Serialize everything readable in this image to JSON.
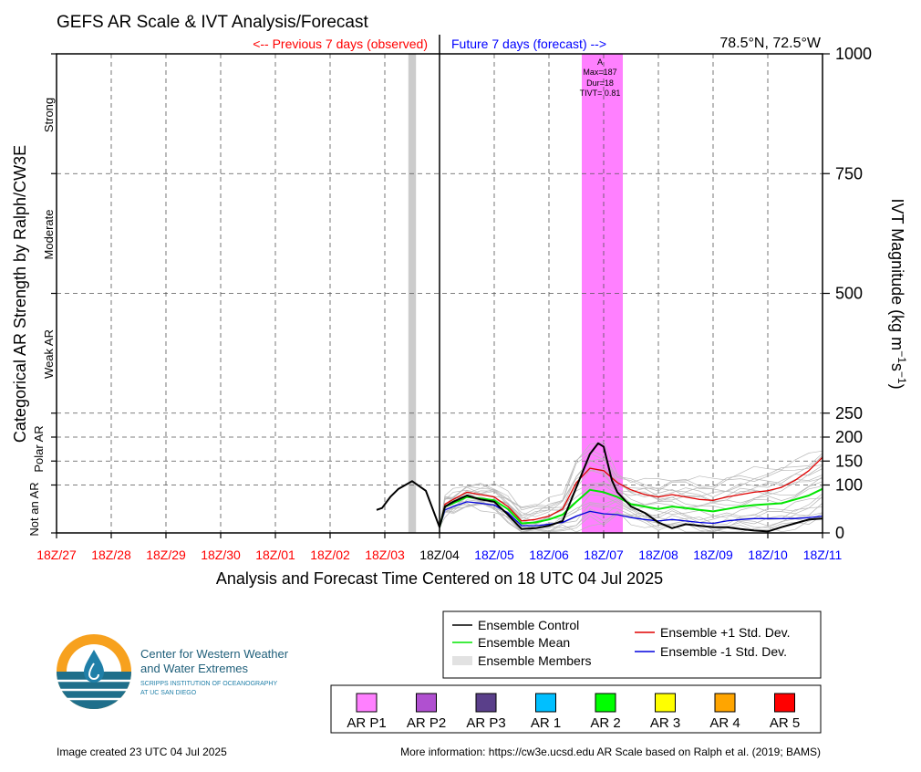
{
  "title": "GEFS AR Scale & IVT Analysis/Forecast",
  "location": "78.5°N, 72.5°W",
  "previous_label": "<-- Previous 7 days (observed)",
  "future_label": "Future 7 days (forecast) -->",
  "left_ylabel": "Categorical AR Strength by Ralph/CW3E",
  "right_ylabel_main": "IVT Magnitude (kg m",
  "right_ylabel_sup1": "−1",
  "right_ylabel_mid": "s",
  "right_ylabel_sup2": "−1",
  "right_ylabel_end": ")",
  "xlabel": "Analysis and Forecast Time Centered on 18 UTC 04 Jul 2025",
  "categories": [
    "Strong",
    "Moderate",
    "Weak AR",
    "Polar AR",
    "Not an AR"
  ],
  "ar_event": {
    "label": "A",
    "max": "Max=187",
    "dur": "Dur=18",
    "tivt": "TIVT= 0.81",
    "category": "AR P1"
  },
  "legend_lines": [
    {
      "label": "Ensemble Control",
      "color": "#000000"
    },
    {
      "label": "Ensemble Mean",
      "color": "#00e600"
    },
    {
      "label": "Ensemble Members",
      "color": "#b0b0b0"
    },
    {
      "label": "Ensemble +1 Std. Dev.",
      "color": "#e00000"
    },
    {
      "label": "Ensemble -1 Std. Dev.",
      "color": "#0000dd"
    }
  ],
  "legend_ar": [
    {
      "label": "AR P1",
      "color": "#ff80ff"
    },
    {
      "label": "AR P2",
      "color": "#b050d0"
    },
    {
      "label": "AR P3",
      "color": "#5a3f8a"
    },
    {
      "label": "AR 1",
      "color": "#00bfff"
    },
    {
      "label": "AR 2",
      "color": "#00ff00"
    },
    {
      "label": "AR 3",
      "color": "#ffff00"
    },
    {
      "label": "AR 4",
      "color": "#ffa500"
    },
    {
      "label": "AR 5",
      "color": "#ff0000"
    }
  ],
  "logo": {
    "line1": "Center for Western Weather",
    "line2": "and Water Extremes",
    "line3": "SCRIPPS INSTITUTION OF OCEANOGRAPHY",
    "line4": "AT UC SAN DIEGO"
  },
  "footer_left": "Image created 23 UTC 04 Jul 2025",
  "footer_right": "More information: https://cw3e.ucsd.edu AR Scale based on Ralph et al. (2019; BAMS)",
  "chart_data": {
    "type": "line",
    "x_ticks": [
      "18Z/27",
      "18Z/28",
      "18Z/29",
      "18Z/30",
      "18Z/01",
      "18Z/02",
      "18Z/03",
      "18Z/04",
      "18Z/05",
      "18Z/06",
      "18Z/07",
      "18Z/08",
      "18Z/09",
      "18Z/10",
      "18Z/11"
    ],
    "observed_tick_color": "#ff0000",
    "forecast_tick_color": "#0000ff",
    "analysis_tick_index": 7,
    "xlim_days": [
      0,
      14
    ],
    "ylim": [
      0,
      1000
    ],
    "y_ticks": [
      0,
      100,
      150,
      200,
      250,
      500,
      750,
      1000
    ],
    "grid": true,
    "ar_shade": {
      "x_start": 9.6,
      "x_end": 10.35,
      "color": "#ff80ff"
    },
    "gray_bar": {
      "x_start": 6.43,
      "x_end": 6.57
    },
    "analysis_x": 7.0,
    "series": [
      {
        "name": "Ensemble Control",
        "color": "#000000",
        "width": 2,
        "x": [
          5.85,
          5.95,
          6.1,
          6.25,
          6.5,
          6.75,
          7.0,
          7.1,
          7.25,
          7.5,
          7.75,
          8.0,
          8.25,
          8.5,
          8.75,
          9.0,
          9.25,
          9.5,
          9.75,
          9.9,
          10.0,
          10.15,
          10.25,
          10.5,
          10.75,
          11.0,
          11.25,
          11.5,
          11.75,
          12.0,
          12.25,
          12.5,
          12.75,
          13.0,
          13.25,
          13.5,
          13.75,
          14.0
        ],
        "y": [
          48,
          52,
          75,
          92,
          108,
          88,
          12,
          55,
          65,
          78,
          70,
          65,
          38,
          8,
          10,
          15,
          25,
          95,
          165,
          187,
          180,
          110,
          85,
          55,
          42,
          22,
          10,
          18,
          15,
          12,
          12,
          8,
          5,
          3,
          12,
          20,
          28,
          30
        ]
      },
      {
        "name": "Ensemble Mean",
        "color": "#00e600",
        "width": 2,
        "x": [
          7.0,
          7.1,
          7.25,
          7.5,
          7.75,
          8.0,
          8.25,
          8.5,
          8.75,
          9.0,
          9.25,
          9.5,
          9.75,
          10.0,
          10.25,
          10.5,
          10.75,
          11.0,
          11.25,
          11.5,
          11.75,
          12.0,
          12.25,
          12.5,
          12.75,
          13.0,
          13.25,
          13.5,
          13.75,
          14.0
        ],
        "y": [
          12,
          55,
          62,
          75,
          72,
          68,
          50,
          20,
          22,
          28,
          38,
          65,
          90,
          85,
          75,
          60,
          55,
          50,
          55,
          52,
          48,
          45,
          50,
          55,
          58,
          60,
          62,
          70,
          78,
          92
        ]
      },
      {
        "name": "Ensemble +1 Std. Dev.",
        "color": "#e00000",
        "width": 1.3,
        "x": [
          7.0,
          7.1,
          7.25,
          7.5,
          7.75,
          8.0,
          8.25,
          8.5,
          8.75,
          9.0,
          9.25,
          9.5,
          9.75,
          10.0,
          10.25,
          10.5,
          10.75,
          11.0,
          11.25,
          11.5,
          11.75,
          12.0,
          12.25,
          12.5,
          12.75,
          13.0,
          13.25,
          13.5,
          13.75,
          14.0
        ],
        "y": [
          12,
          60,
          70,
          85,
          80,
          75,
          55,
          25,
          28,
          35,
          50,
          105,
          135,
          130,
          105,
          90,
          80,
          75,
          80,
          75,
          70,
          68,
          75,
          80,
          85,
          88,
          95,
          110,
          130,
          158
        ]
      },
      {
        "name": "Ensemble -1 Std. Dev.",
        "color": "#0000dd",
        "width": 1.3,
        "x": [
          7.0,
          7.1,
          7.25,
          7.5,
          7.75,
          8.0,
          8.25,
          8.5,
          8.75,
          9.0,
          9.25,
          9.5,
          9.75,
          10.0,
          10.25,
          10.5,
          10.75,
          11.0,
          11.25,
          11.5,
          11.75,
          12.0,
          12.25,
          12.5,
          12.75,
          13.0,
          13.25,
          13.5,
          13.75,
          14.0
        ],
        "y": [
          12,
          48,
          55,
          65,
          62,
          58,
          42,
          15,
          15,
          18,
          22,
          35,
          45,
          40,
          38,
          32,
          28,
          25,
          28,
          25,
          22,
          20,
          25,
          28,
          30,
          30,
          30,
          30,
          32,
          35
        ]
      }
    ]
  }
}
